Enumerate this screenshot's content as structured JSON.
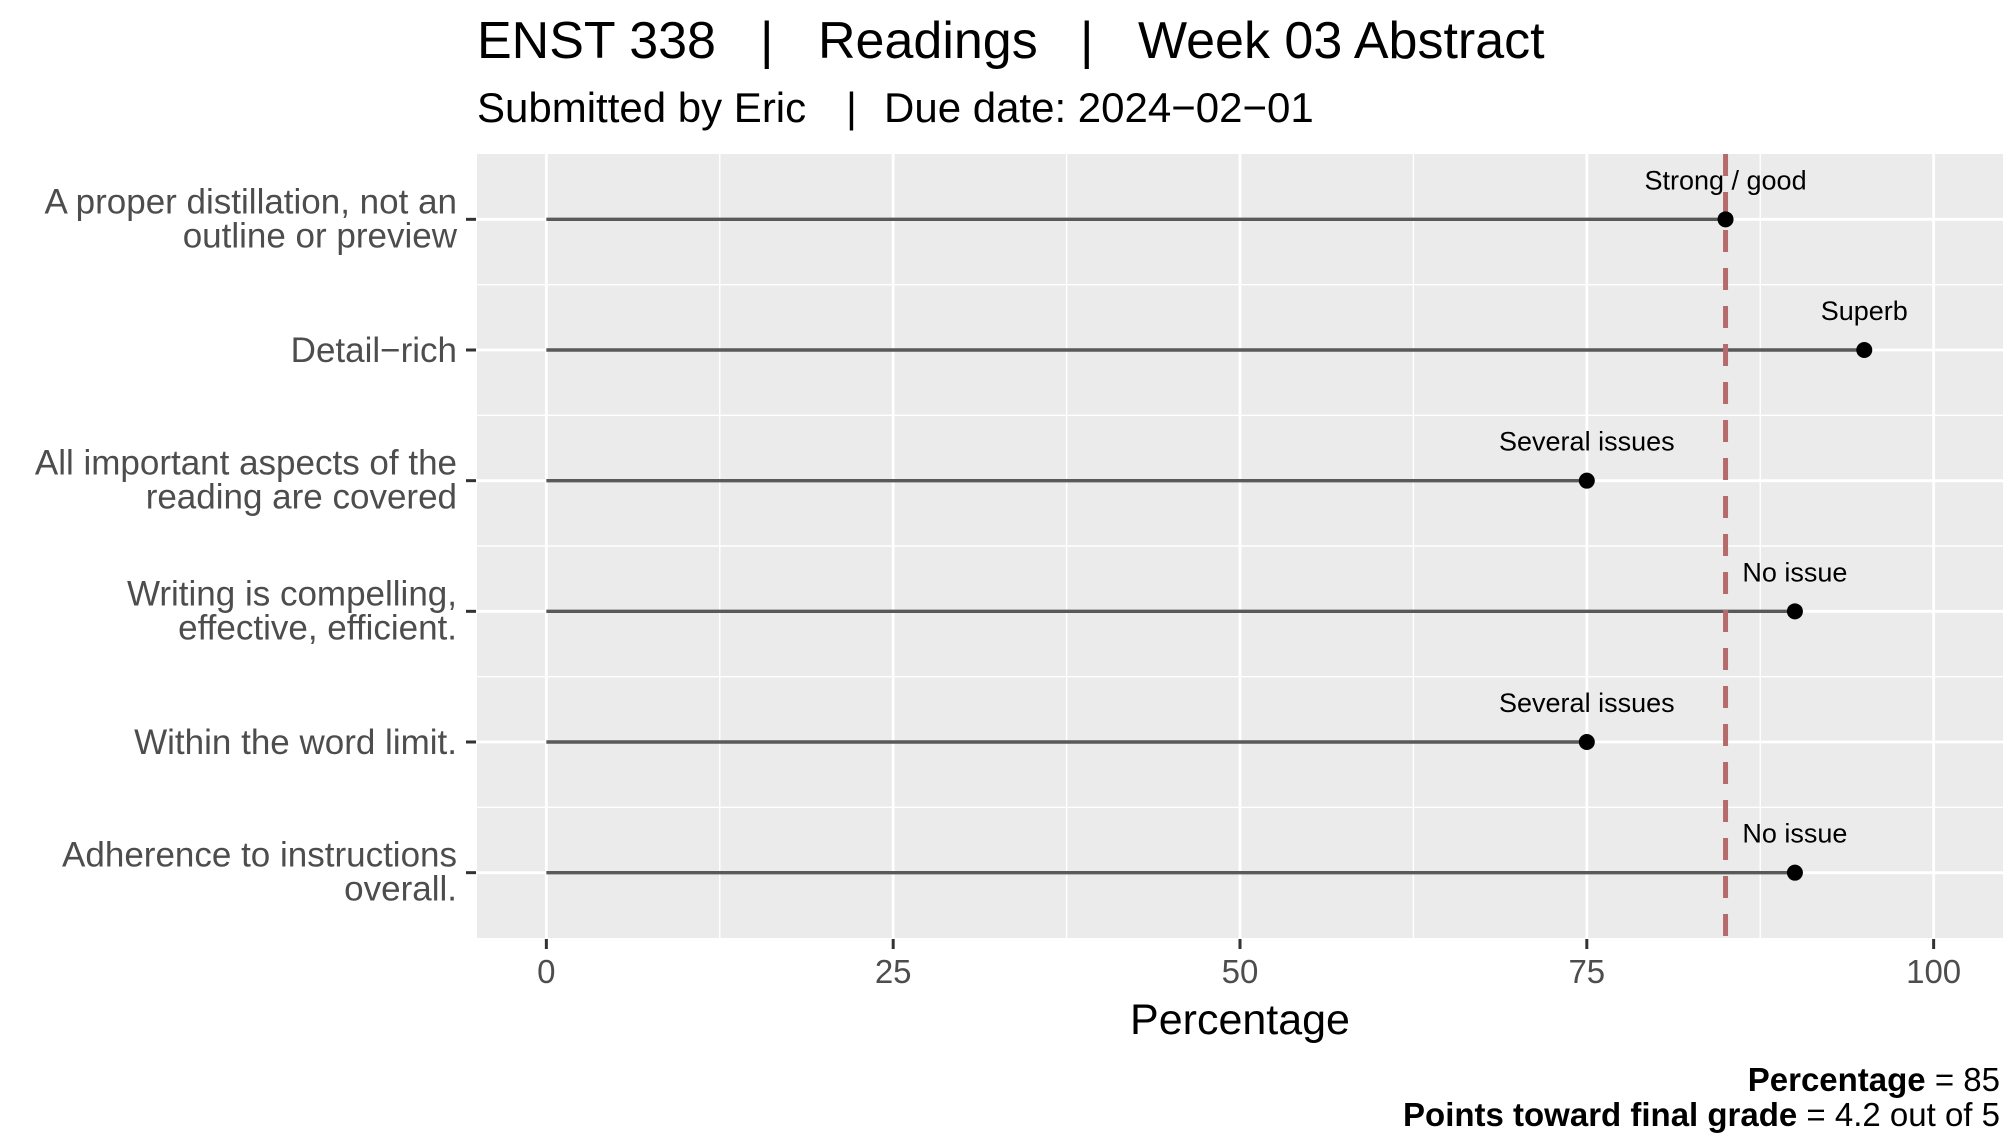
{
  "title": {
    "course": "ENST 338",
    "sep1": "|",
    "section": "Readings",
    "sep2": "|",
    "assignment": "Week 03 Abstract"
  },
  "subtitle": {
    "submitted": "Submitted by Eric",
    "sep": "|",
    "due": "Due date: 2024−02−01"
  },
  "caption": {
    "line1_bold": "Percentage",
    "line1_rest": " = 85",
    "line2_bold": "Points toward final grade",
    "line2_rest": " = 4.2 out of 5"
  },
  "colors": {
    "panel_bg": "#ebebeb",
    "grid": "#ffffff",
    "segment": "#595959",
    "point": "#000000",
    "reference_line": "#b56b6b"
  },
  "chart_data": {
    "type": "lollipop",
    "orientation": "horizontal",
    "xlabel": "Percentage",
    "xlim": [
      -5,
      105
    ],
    "xticks": [
      0,
      25,
      50,
      75,
      100
    ],
    "reference_line": {
      "value": 85,
      "style": "dashed"
    },
    "grid": true,
    "categories": [
      {
        "label": [
          "A proper distillation, not an",
          "outline or preview"
        ],
        "value": 85,
        "annotation": "Strong / good"
      },
      {
        "label": [
          "Detail−rich"
        ],
        "value": 95,
        "annotation": "Superb"
      },
      {
        "label": [
          "All important aspects of the",
          "reading are covered"
        ],
        "value": 75,
        "annotation": "Several issues"
      },
      {
        "label": [
          "Writing is compelling,",
          "effective, efficient."
        ],
        "value": 90,
        "annotation": "No issue"
      },
      {
        "label": [
          "Within the word limit."
        ],
        "value": 75,
        "annotation": "Several issues"
      },
      {
        "label": [
          "Adherence to instructions",
          "overall."
        ],
        "value": 90,
        "annotation": "No issue"
      }
    ]
  }
}
